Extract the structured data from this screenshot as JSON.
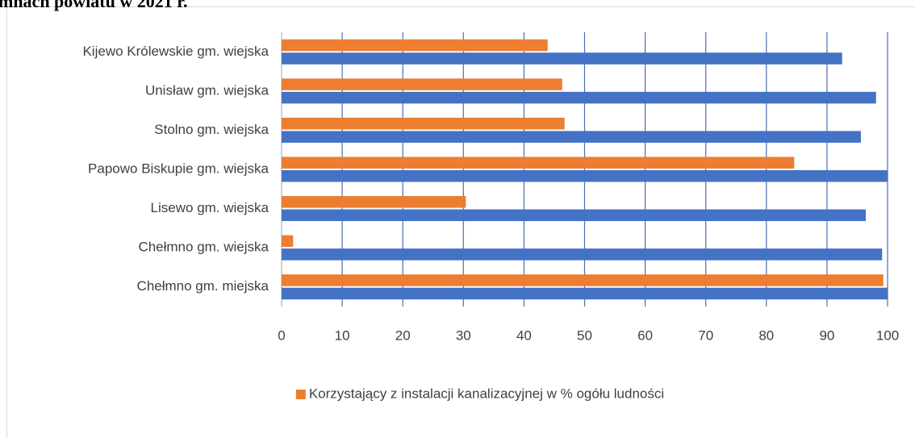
{
  "chart_data": {
    "type": "hbar",
    "title": "mnach powiatu w 2021 r.",
    "categories": [
      "Kijewo Królewskie gm. wiejska",
      "Unisław gm. wiejska",
      "Stolno gm. wiejska",
      "Papowo Biskupie gm. wiejska",
      "Lisewo gm. wiejska",
      "Chełmno gm. wiejska",
      "Chełmno gm. miejska"
    ],
    "series": [
      {
        "name": "Korzystający z instalacji kanalizacyjnej w % ogółu ludności",
        "color": "#ed7d31",
        "values": [
          43.9,
          46.3,
          46.7,
          84.6,
          30.4,
          1.9,
          99.3
        ]
      },
      {
        "color": "#4472c4",
        "values": [
          92.5,
          98.1,
          95.6,
          100,
          96.4,
          99.1,
          100
        ]
      }
    ],
    "xlim": [
      0,
      100
    ],
    "xticks": [
      0,
      10,
      20,
      30,
      40,
      50,
      60,
      70,
      80,
      90,
      100
    ],
    "grid": true,
    "legend": "bottom"
  }
}
